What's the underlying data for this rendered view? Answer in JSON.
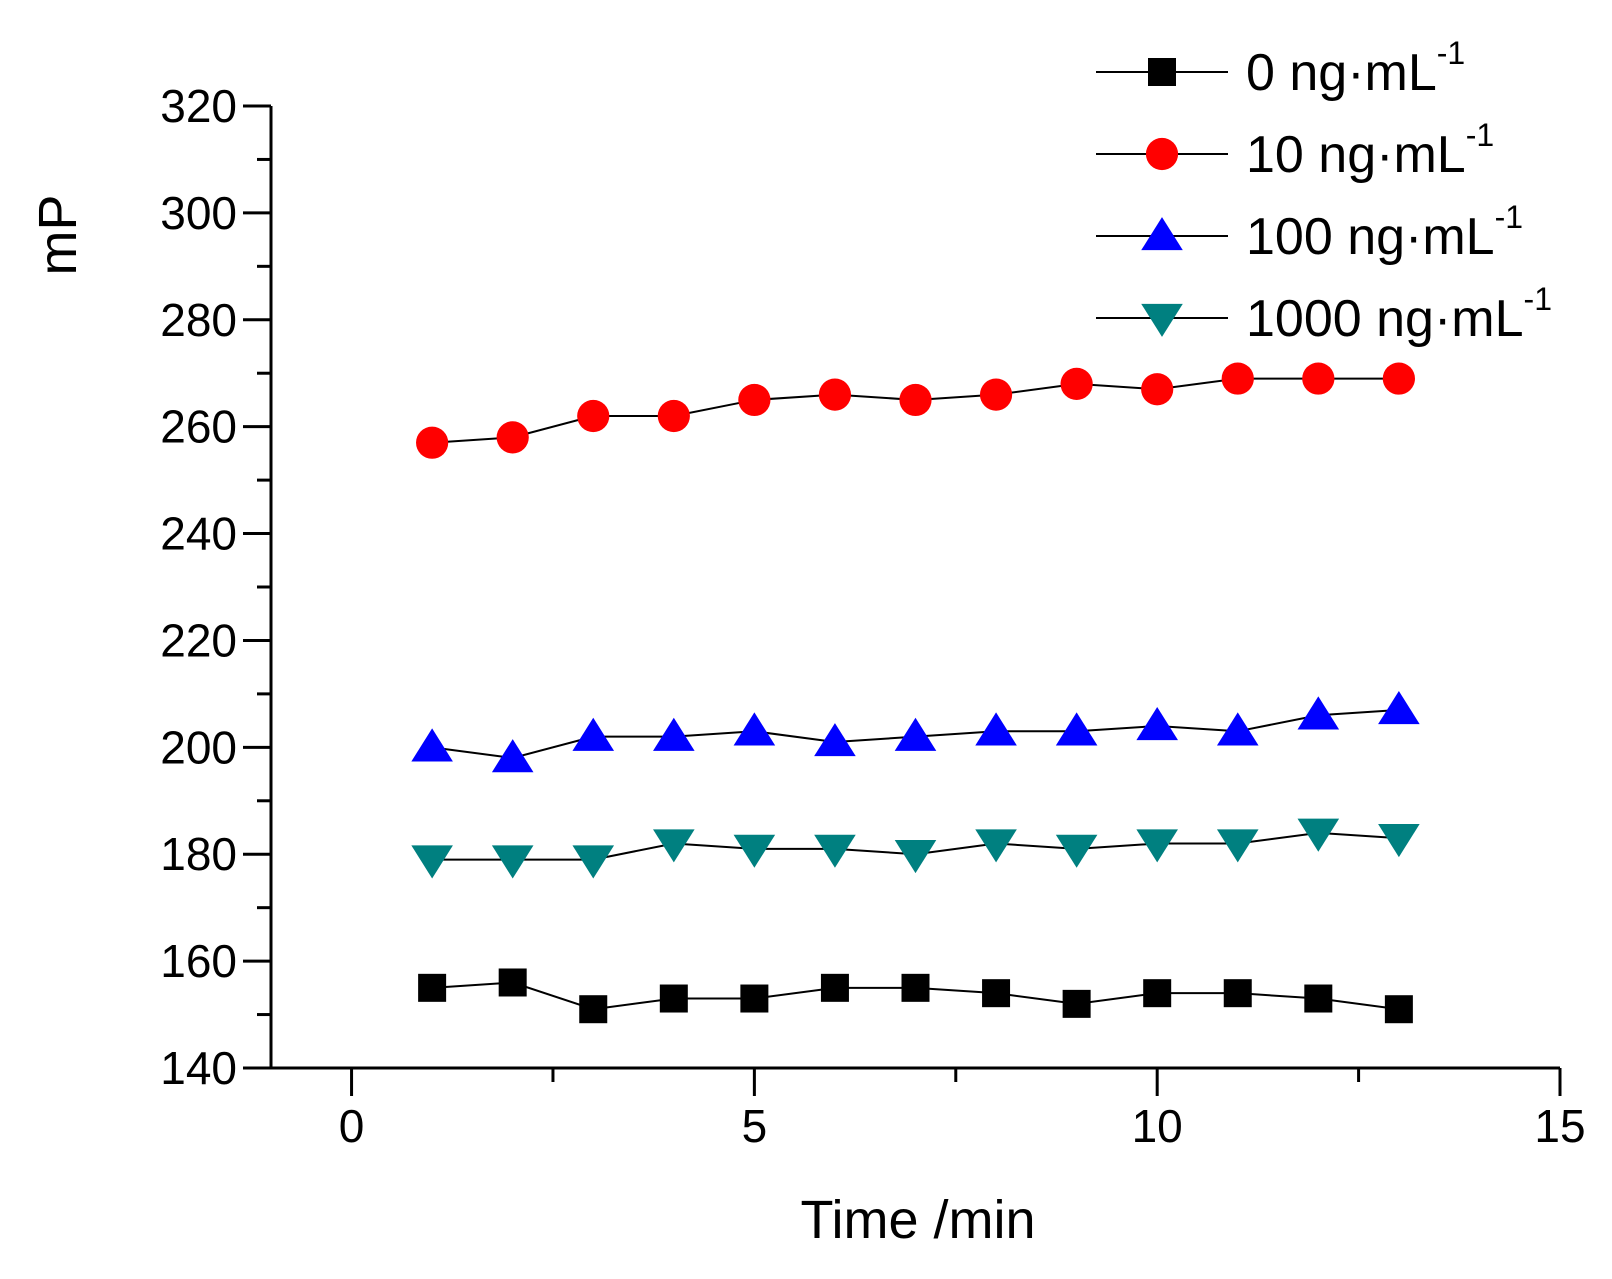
{
  "chart_data": {
    "type": "line",
    "xlabel": "Time /min",
    "ylabel": "mP",
    "xlim": [
      -1,
      15
    ],
    "ylim": [
      140,
      320
    ],
    "xticks": [
      0,
      5,
      10,
      15
    ],
    "yticks": [
      140,
      160,
      180,
      200,
      220,
      240,
      260,
      280,
      300,
      320
    ],
    "grid": false,
    "legend_position": "top-right",
    "x": [
      1,
      2,
      3,
      4,
      5,
      6,
      7,
      8,
      9,
      10,
      11,
      12,
      13
    ],
    "series": [
      {
        "name": "0 ng·mL",
        "sup": "-1",
        "marker": "square",
        "color": "#000000",
        "values": [
          155,
          156,
          151,
          153,
          153,
          155,
          155,
          154,
          152,
          154,
          154,
          153,
          151
        ]
      },
      {
        "name": "10 ng·mL",
        "sup": "-1",
        "marker": "circle",
        "color": "#ff0000",
        "values": [
          257,
          258,
          262,
          262,
          265,
          266,
          265,
          266,
          268,
          267,
          269,
          269,
          269
        ]
      },
      {
        "name": "100 ng·mL",
        "sup": "-1",
        "marker": "triangle-up",
        "color": "#0000ff",
        "values": [
          200,
          198,
          202,
          202,
          203,
          201,
          202,
          203,
          203,
          204,
          203,
          206,
          207
        ]
      },
      {
        "name": "1000 ng·mL",
        "sup": "-1",
        "marker": "triangle-down",
        "color": "#008080",
        "values": [
          179,
          179,
          179,
          182,
          181,
          181,
          180,
          182,
          181,
          182,
          182,
          184,
          183
        ]
      }
    ]
  }
}
